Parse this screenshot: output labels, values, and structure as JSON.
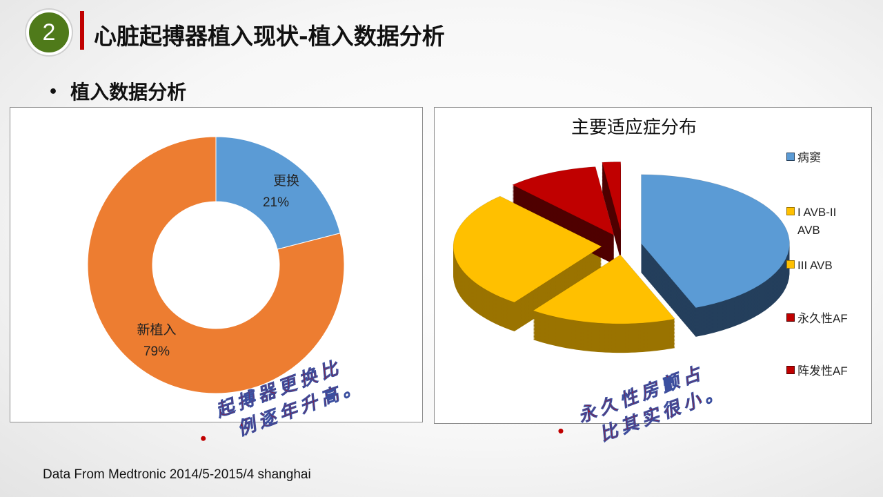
{
  "header": {
    "section_number": "2",
    "title": "心脏起搏器植入现状-植入数据分析"
  },
  "subtitle": {
    "bullet": "•",
    "text": "植入数据分析"
  },
  "footer": "Data From Medtronic 2014/5-2015/4 shanghai",
  "notes": [
    {
      "bullet": "•",
      "line1": "起搏器更换比",
      "line2": "例逐年升高。"
    },
    {
      "bullet": "•",
      "line1": "永久性房颤占",
      "line2": "比其实很小。"
    }
  ],
  "chart_data": [
    {
      "type": "pie",
      "variant": "donut",
      "title": "",
      "categories": [
        "更换",
        "新植入"
      ],
      "values": [
        21,
        79
      ],
      "labels": [
        "21%",
        "79%"
      ],
      "colors": [
        "#5B9BD5",
        "#ED7D31"
      ]
    },
    {
      "type": "pie",
      "variant": "3d-exploded",
      "title": "主要适应症分布",
      "categories": [
        "病窦",
        "I AVB-II AVB",
        "III AVB",
        "永久性AF",
        "阵发性AF"
      ],
      "legend_lines": [
        [
          "病窦"
        ],
        [
          "I AVB-II",
          "AVB"
        ],
        [
          "III AVB"
        ],
        [
          "永久性AF"
        ],
        [
          "阵发性AF"
        ]
      ],
      "values": [
        44,
        16,
        28,
        10,
        2
      ],
      "colors": [
        "#5B9BD5",
        "#FFC000",
        "#FFC000",
        "#C00000",
        "#C00000"
      ],
      "side_colors": [
        "#243F5C",
        "#9A7300",
        "#9A7300",
        "#4F0000",
        "#4F0000"
      ],
      "legend_position": "right"
    }
  ]
}
